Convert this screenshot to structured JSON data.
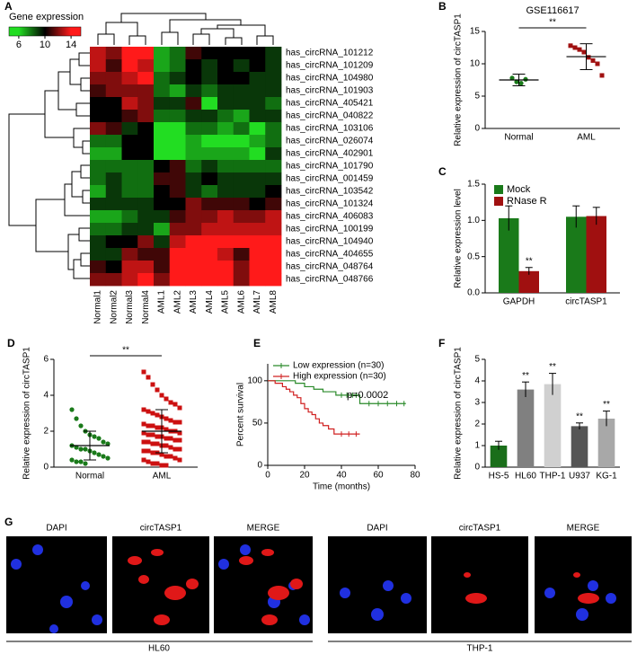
{
  "panel_labels": [
    "A",
    "B",
    "C",
    "D",
    "E",
    "F",
    "G"
  ],
  "chart_data": [
    {
      "type": "heatmap",
      "colorbar_title": "Gene expression",
      "colorbar_lim": [
        4.5,
        15.5
      ],
      "colorbar_ticks": [
        6,
        10,
        14
      ],
      "colorscale": [
        "#22dd22",
        "#000000",
        "#ff1a1a"
      ],
      "columns": [
        "Normal1",
        "Normal2",
        "Normal3",
        "Normal4",
        "AML1",
        "AML2",
        "AML3",
        "AML4",
        "AML5",
        "AML6",
        "AML7",
        "AML8"
      ],
      "rows": [
        "has_circRNA_101212",
        "has_circRNA_101209",
        "has_circRNA_104980",
        "has_circRNA_101903",
        "has_circRNA_405421",
        "has_circRNA_040822",
        "has_circRNA_103106",
        "has_circRNA_026074",
        "has_circRNA_402901",
        "has_circRNA_101790",
        "has_circRNA_001459",
        "has_circRNA_103542",
        "has_circRNA_101324",
        "has_circRNA_406083",
        "has_circRNA_100199",
        "has_circRNA_104940",
        "has_circRNA_404655",
        "has_circRNA_048764",
        "has_circRNA_048766"
      ],
      "row_label_colors": [
        "#000",
        "#000",
        "#000",
        "#000",
        "#000",
        "#000",
        "#000",
        "#000",
        "#000",
        "#000",
        "#000",
        "#000",
        "#000",
        "#e02020",
        "#000",
        "#000",
        "#000",
        "#000",
        "#000"
      ],
      "values": [
        [
          13,
          12,
          14,
          14,
          7,
          8,
          11,
          10,
          10,
          10,
          10,
          9
        ],
        [
          13,
          11,
          14,
          13,
          7,
          8,
          10,
          9,
          10,
          9,
          10,
          9
        ],
        [
          12,
          12,
          13,
          14,
          8,
          9,
          10,
          9,
          10,
          10,
          9,
          9
        ],
        [
          11,
          12,
          12,
          12,
          8,
          7,
          9,
          8,
          9,
          9,
          9,
          9
        ],
        [
          10,
          10,
          13,
          12,
          9,
          9,
          11,
          6,
          9,
          9,
          9,
          8
        ],
        [
          10,
          10,
          11,
          12,
          8,
          8,
          9,
          9,
          8,
          7,
          9,
          9
        ],
        [
          12,
          11,
          9,
          10,
          6,
          6,
          8,
          8,
          7,
          8,
          6,
          8
        ],
        [
          8,
          8,
          10,
          10,
          6,
          6,
          7,
          6,
          6,
          6,
          7,
          8
        ],
        [
          7,
          7,
          10,
          10,
          6,
          6,
          7,
          7,
          7,
          7,
          6,
          9
        ],
        [
          8,
          8,
          8,
          8,
          10,
          11,
          8,
          9,
          8,
          8,
          8,
          8
        ],
        [
          8,
          9,
          8,
          8,
          11,
          11,
          9,
          10,
          9,
          9,
          9,
          9
        ],
        [
          7,
          9,
          8,
          8,
          10,
          11,
          9,
          8,
          9,
          9,
          9,
          10
        ],
        [
          9,
          9,
          9,
          9,
          10,
          10,
          12,
          11,
          11,
          11,
          10,
          11
        ],
        [
          7,
          7,
          8,
          9,
          9,
          11,
          12,
          12,
          13,
          12,
          12,
          13
        ],
        [
          8,
          8,
          9,
          9,
          7,
          12,
          12,
          13,
          13,
          13,
          13,
          13
        ],
        [
          9,
          10,
          10,
          12,
          9,
          13,
          14,
          14,
          14,
          14,
          14,
          14
        ],
        [
          9,
          9,
          12,
          11,
          11,
          14,
          14,
          14,
          13,
          11,
          14,
          14
        ],
        [
          11,
          10,
          13,
          13,
          11,
          14,
          14,
          14,
          14,
          12,
          14,
          15
        ],
        [
          12,
          12,
          13,
          14,
          12,
          14,
          15,
          15,
          14,
          12,
          15,
          14
        ]
      ]
    },
    {
      "type": "dot",
      "title": "GSE116617",
      "ylabel": "Relative expression of circTASP1",
      "categories": [
        "Normal",
        "AML"
      ],
      "annotation": "**",
      "ylim": [
        0,
        15
      ],
      "yticks": [
        0,
        5,
        10,
        15
      ],
      "groups": [
        {
          "color": "#1a7a1a",
          "marker": "circle",
          "values": [
            7.8,
            7.2,
            7.0,
            7.6
          ],
          "mean": 7.5,
          "sd": 0.9
        },
        {
          "color": "#a01010",
          "marker": "square",
          "values": [
            12.8,
            12.5,
            12.2,
            11.8,
            11.0,
            10.5,
            10.0,
            8.2
          ],
          "mean": 11.1,
          "sd": 2.0
        }
      ]
    },
    {
      "type": "bar",
      "ylabel": "Relative expression level",
      "categories": [
        "GAPDH",
        "circTASP1"
      ],
      "ylim": [
        0,
        1.5
      ],
      "yticks": [
        {
          "value": 0,
          "label": "0.0"
        },
        {
          "value": 0.5,
          "label": "0.5"
        },
        {
          "value": 1,
          "label": "1.0"
        },
        {
          "value": 1.5,
          "label": "1.5"
        }
      ],
      "series": [
        {
          "name": "Mock",
          "color": "#1a7a1a",
          "values": [
            1.03,
            1.05
          ],
          "errors": [
            0.17,
            0.15
          ],
          "annotations": [
            null,
            null
          ]
        },
        {
          "name": "RNase R",
          "color": "#a01010",
          "values": [
            0.3,
            1.06
          ],
          "errors": [
            0.05,
            0.12
          ],
          "annotations": [
            "**",
            null
          ]
        }
      ]
    },
    {
      "type": "dot",
      "ylabel": "Relative expression of circTASP1",
      "categories": [
        "Normal",
        "AML"
      ],
      "annotation": "**",
      "ylim": [
        0,
        6
      ],
      "yticks": [
        0,
        2,
        4,
        6
      ],
      "groups": [
        {
          "color": "#1a7a1a",
          "marker": "circle",
          "values": [
            3.2,
            2.7,
            2.3,
            2.0,
            1.8,
            1.7,
            1.6,
            1.4,
            1.3,
            1.2,
            1.1,
            1.0,
            1.0,
            0.9,
            0.8,
            0.7,
            0.6,
            0.5,
            0.4,
            0.3,
            0.3,
            0.2
          ],
          "mean": 1.2,
          "sd": 0.8
        },
        {
          "color": "#cc1010",
          "marker": "square",
          "values": [
            5.3,
            5.0,
            4.6,
            4.3,
            4.0,
            3.8,
            3.6,
            3.5,
            3.3,
            3.2,
            3.1,
            3.0,
            2.9,
            2.8,
            2.7,
            2.6,
            2.5,
            2.5,
            2.4,
            2.3,
            2.3,
            2.2,
            2.2,
            2.1,
            2.0,
            2.0,
            1.9,
            1.9,
            1.8,
            1.8,
            1.7,
            1.7,
            1.6,
            1.6,
            1.5,
            1.5,
            1.4,
            1.4,
            1.3,
            1.3,
            1.2,
            1.2,
            1.1,
            1.0,
            1.0,
            0.9,
            0.9,
            0.8,
            0.8,
            0.7,
            0.6,
            0.6,
            0.5,
            0.4,
            0.4,
            0.3,
            0.2,
            0.2,
            0.1,
            0.1
          ],
          "mean": 2.0,
          "sd": 1.2
        }
      ]
    },
    {
      "type": "line",
      "ylabel": "Percent survival",
      "xlabel": "Time (months)",
      "annotation": "p=0.0002",
      "xlim": [
        0,
        80
      ],
      "xticks": [
        0,
        20,
        40,
        60,
        80
      ],
      "ylim": [
        0,
        120
      ],
      "yticks": [
        0,
        50,
        100
      ],
      "series": [
        {
          "name": "Low expression (n=30)",
          "color": "#2a8a2a",
          "x": [
            0,
            15,
            15,
            20,
            20,
            25,
            25,
            30,
            30,
            37,
            37,
            50,
            50,
            75
          ],
          "values": [
            100,
            100,
            97,
            97,
            93,
            93,
            90,
            90,
            87,
            87,
            83,
            83,
            73,
            73
          ],
          "censored_x": [
            40,
            43,
            46,
            48,
            55,
            60,
            65,
            70,
            74
          ],
          "censored_y": [
            83,
            83,
            83,
            83,
            73,
            73,
            73,
            73,
            73
          ]
        },
        {
          "name": "High expression (n=30)",
          "color": "#d02020",
          "x": [
            0,
            4,
            4,
            8,
            8,
            10,
            10,
            12,
            12,
            14,
            14,
            16,
            16,
            18,
            18,
            20,
            20,
            22,
            22,
            24,
            24,
            26,
            26,
            28,
            28,
            30,
            30,
            33,
            33,
            36,
            36,
            50
          ],
          "values": [
            100,
            100,
            97,
            97,
            93,
            93,
            90,
            90,
            87,
            87,
            83,
            83,
            80,
            80,
            73,
            73,
            67,
            67,
            63,
            63,
            60,
            60,
            55,
            55,
            50,
            50,
            47,
            47,
            43,
            43,
            37,
            37
          ],
          "censored_x": [
            40,
            44,
            48
          ],
          "censored_y": [
            37,
            37,
            37
          ]
        }
      ]
    },
    {
      "type": "bar",
      "ylabel": "Relative expression of circTASP1",
      "categories": [
        "HS-5",
        "HL60",
        "THP-1",
        "U937",
        "KG-1"
      ],
      "ylim": [
        0,
        5
      ],
      "yticks": [
        0,
        1,
        2,
        3,
        4,
        5
      ],
      "values": [
        1.0,
        3.6,
        3.85,
        1.9,
        2.25
      ],
      "errors": [
        0.2,
        0.35,
        0.5,
        0.15,
        0.35
      ],
      "colors": [
        "#1a6e1a",
        "#808080",
        "#d0d0d0",
        "#555555",
        "#a8a8a8"
      ],
      "annotations": [
        null,
        "**",
        "**",
        "**",
        "**"
      ]
    }
  ],
  "panel_g": {
    "groups": [
      {
        "name": "HL60",
        "channels": [
          "DAPI",
          "circTASP1",
          "MERGE"
        ]
      },
      {
        "name": "THP-1",
        "channels": [
          "DAPI",
          "circTASP1",
          "MERGE"
        ]
      }
    ]
  }
}
